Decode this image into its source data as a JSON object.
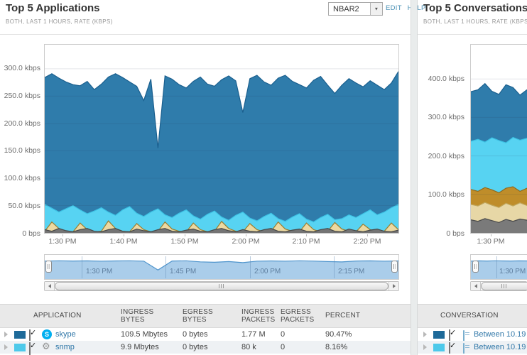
{
  "left_panel": {
    "title": "Top 5 Applications",
    "subtitle": "BOTH, LAST 1 HOURS, RATE (KBPS)",
    "dropdown_value": "NBAR2",
    "edit_label": "EDIT",
    "help_label": "HELP",
    "scrubber_labels": [
      "1:30 PM",
      "1:45 PM",
      "2:00 PM",
      "2:15 PM"
    ],
    "table": {
      "headers": {
        "application": "APPLICATION",
        "ingress_bytes": [
          "INGRESS",
          "BYTES"
        ],
        "egress_bytes": [
          "EGRESS",
          "BYTES"
        ],
        "ingress_packets": [
          "INGRESS",
          "PACKETS"
        ],
        "egress_packets": [
          "EGRESS",
          "PACKETS"
        ],
        "percent": "PERCENT"
      },
      "rows": [
        {
          "app": "skype",
          "swatch": "#1e6a99",
          "ingress_bytes": "109.5 Mbytes",
          "egress_bytes": "0 bytes",
          "ingress_packets": "1.77 M",
          "egress_packets": "0",
          "percent": "90.47%"
        },
        {
          "app": "snmp",
          "swatch": "#4dc9ea",
          "ingress_bytes": "9.9 Mbytes",
          "egress_bytes": "0 bytes",
          "ingress_packets": "80 k",
          "egress_packets": "0",
          "percent": "8.16%"
        }
      ]
    }
  },
  "right_panel": {
    "title": "Top 5 Conversations",
    "subtitle": "BOTH, LAST 1 HOURS, RATE (KBPS)",
    "scrubber_labels": [
      "1:30 PM"
    ],
    "table": {
      "headers": {
        "conversation": "CONVERSATION"
      },
      "rows": [
        {
          "name": "Between 10.19",
          "swatch": "#1e6a99"
        },
        {
          "name": "Between 10.19",
          "swatch": "#4dc9ea"
        }
      ]
    }
  },
  "chart_data": [
    {
      "id": "applications-area",
      "type": "area",
      "title": "Top 5 Applications",
      "ylabel": "rate (kbps)",
      "ymax": 344,
      "grid_values": [
        50,
        100,
        150,
        200,
        250,
        300
      ],
      "y_tick_labels": [
        "300.0 kbps",
        "250.0 kbps",
        "200.0 kbps",
        "150.0 kbps",
        "100.0 kbps",
        "50.0 kbps",
        "0 bps"
      ],
      "x_tick_labels": [
        "1:30 PM",
        "1:40 PM",
        "1:50 PM",
        "2:00 PM",
        "2:10 PM",
        "2:20 PM"
      ],
      "legend_position": "none",
      "series": [
        {
          "name": "skype",
          "color": "#2f7cab",
          "stroke": "#1a5f8e",
          "values": [
            284,
            291,
            283,
            276,
            271,
            269,
            277,
            262,
            272,
            285,
            291,
            284,
            276,
            268,
            242,
            281,
            155,
            287,
            281,
            271,
            265,
            277,
            285,
            272,
            268,
            280,
            287,
            278,
            220,
            282,
            288,
            276,
            270,
            283,
            288,
            277,
            271,
            265,
            279,
            286,
            270,
            255,
            270,
            282,
            274,
            267,
            278,
            270,
            262,
            274,
            295
          ]
        },
        {
          "name": "snmp",
          "color": "#57d3f2",
          "stroke": "#3cc2e4",
          "values": [
            52,
            45,
            38,
            44,
            50,
            42,
            35,
            40,
            46,
            38,
            32,
            42,
            48,
            36,
            30,
            38,
            44,
            33,
            28,
            36,
            42,
            31,
            25,
            34,
            40,
            29,
            23,
            32,
            38,
            27,
            22,
            30,
            36,
            26,
            21,
            29,
            35,
            25,
            20,
            28,
            34,
            24,
            26,
            33,
            28,
            35,
            42,
            33,
            38,
            46,
            52
          ]
        },
        {
          "name": "other-tan",
          "color": "#ecd9a2",
          "stroke": "#9b7d2d",
          "values": [
            3,
            20,
            8,
            3,
            2,
            18,
            6,
            2,
            3,
            22,
            8,
            3,
            2,
            17,
            6,
            2,
            3,
            20,
            7,
            3,
            2,
            18,
            6,
            2,
            3,
            21,
            8,
            3,
            2,
            17,
            6,
            2,
            3,
            20,
            7,
            3,
            2,
            18,
            6,
            2,
            3,
            19,
            7,
            3,
            2,
            16,
            6,
            2,
            3,
            18,
            6
          ]
        },
        {
          "name": "other-gray",
          "color": "#747474",
          "stroke": "#474747",
          "values": [
            6,
            3,
            8,
            4,
            2,
            6,
            8,
            3,
            2,
            6,
            8,
            3,
            2,
            7,
            4,
            2,
            6,
            8,
            3,
            2,
            5,
            7,
            3,
            2,
            6,
            8,
            4,
            2,
            6,
            3,
            2,
            6,
            8,
            3,
            2,
            5,
            7,
            3,
            2,
            6,
            8,
            3,
            2,
            7,
            4,
            2,
            5,
            7,
            3,
            2,
            5
          ]
        }
      ]
    },
    {
      "id": "applications-overview",
      "type": "area",
      "ymax": 400,
      "series": [
        {
          "name": "total",
          "color": "#aacdea",
          "stroke": "#4e94cc",
          "values": [
            298,
            302,
            299,
            301,
            297,
            300,
            302,
            297,
            150,
            299,
            302,
            285,
            278,
            290,
            272,
            296,
            300,
            297,
            302,
            298,
            290,
            283,
            299,
            301,
            297,
            300
          ]
        }
      ]
    },
    {
      "id": "conversations-area",
      "type": "area",
      "title": "Top 5 Conversations",
      "ylabel": "rate (kbps)",
      "ymax": 489,
      "grid_values": [
        100,
        200,
        300,
        400
      ],
      "y_tick_labels": [
        "400.0 kbps",
        "300.0 kbps",
        "200.0 kbps",
        "100.0 kbps",
        "0 bps"
      ],
      "x_tick_labels": [
        "1:30 PM"
      ],
      "legend_position": "none",
      "series": [
        {
          "name": "conversation-1",
          "color": "#2f7cab",
          "stroke": "#1a5f8e",
          "values": [
            367,
            372,
            388,
            368,
            360,
            385,
            378,
            358,
            372
          ]
        },
        {
          "name": "conversation-2",
          "color": "#57d3f2",
          "stroke": "#3cc2e4",
          "values": [
            238,
            243,
            236,
            247,
            240,
            234,
            248,
            241,
            246
          ]
        },
        {
          "name": "conversation-3",
          "color": "#bf8d2a",
          "stroke": "#8e6a1f",
          "values": [
            113,
            108,
            118,
            112,
            104,
            116,
            120,
            108,
            116
          ]
        },
        {
          "name": "conversation-4",
          "color": "#e7d7a6",
          "stroke": "#c0a65c",
          "values": [
            74,
            70,
            79,
            72,
            66,
            77,
            70,
            78,
            71
          ]
        },
        {
          "name": "conversation-5",
          "color": "#7a7a7a",
          "stroke": "#4a4a4a",
          "values": [
            34,
            30,
            37,
            32,
            27,
            35,
            30,
            36,
            33
          ]
        }
      ]
    },
    {
      "id": "conversations-overview",
      "type": "area",
      "ymax": 400,
      "series": [
        {
          "name": "total",
          "color": "#aacdea",
          "stroke": "#4e94cc",
          "values": [
            298,
            301,
            299,
            302,
            300,
            299,
            301,
            300
          ]
        }
      ]
    }
  ]
}
